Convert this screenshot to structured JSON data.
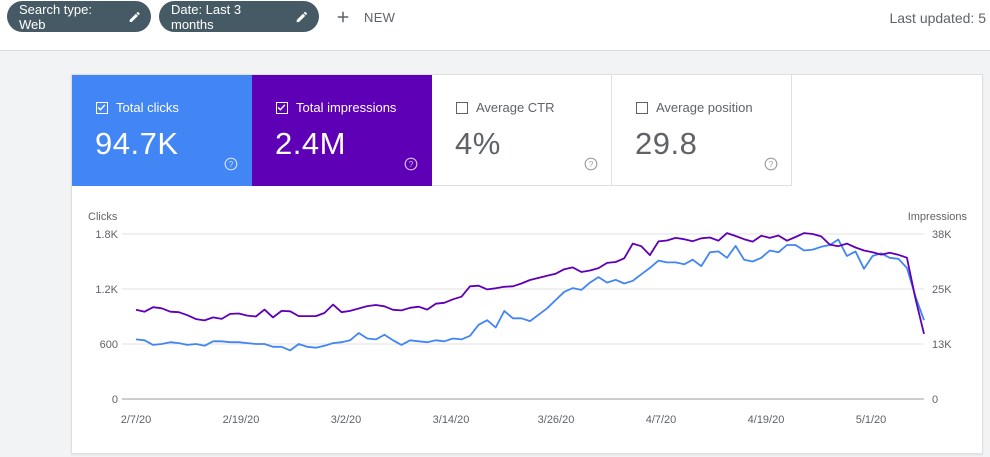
{
  "toolbar": {
    "chip_search_type": "Search type: Web",
    "chip_date": "Date: Last 3 months",
    "new_label": "NEW",
    "last_updated": "Last updated: 5"
  },
  "metrics": {
    "clicks": {
      "label": "Total clicks",
      "value": "94.7K",
      "checked": true,
      "color": "#4285f4"
    },
    "impressions": {
      "label": "Total impressions",
      "value": "2.4M",
      "checked": true,
      "color": "#5e00b5"
    },
    "ctr": {
      "label": "Average CTR",
      "value": "4%",
      "checked": false
    },
    "position": {
      "label": "Average position",
      "value": "29.8",
      "checked": false
    }
  },
  "chart_data": {
    "type": "line",
    "left_axis": {
      "title": "Clicks",
      "ticks": [
        "0",
        "600",
        "1.2K",
        "1.8K"
      ],
      "ylim": [
        0,
        1800
      ]
    },
    "right_axis": {
      "title": "Impressions",
      "ticks": [
        "0",
        "13K",
        "25K",
        "38K"
      ],
      "ylim": [
        0,
        38000
      ]
    },
    "x_ticks": [
      "2/7/20",
      "2/19/20",
      "3/2/20",
      "3/14/20",
      "3/26/20",
      "4/7/20",
      "4/19/20",
      "5/1/20"
    ],
    "series": [
      {
        "name": "Clicks",
        "color": "#4285f4",
        "axis": "left",
        "values": [
          650,
          640,
          590,
          600,
          620,
          610,
          590,
          600,
          580,
          630,
          630,
          620,
          620,
          610,
          600,
          600,
          570,
          570,
          530,
          600,
          570,
          560,
          580,
          610,
          620,
          640,
          720,
          660,
          650,
          700,
          640,
          590,
          640,
          630,
          620,
          640,
          630,
          660,
          650,
          690,
          810,
          860,
          780,
          960,
          880,
          880,
          850,
          920,
          990,
          1080,
          1170,
          1210,
          1190,
          1270,
          1330,
          1270,
          1300,
          1260,
          1290,
          1360,
          1430,
          1510,
          1490,
          1490,
          1470,
          1520,
          1450,
          1600,
          1610,
          1540,
          1670,
          1520,
          1500,
          1540,
          1620,
          1600,
          1680,
          1680,
          1620,
          1630,
          1660,
          1680,
          1740,
          1560,
          1610,
          1420,
          1560,
          1590,
          1540,
          1530,
          1430,
          1120,
          860
        ]
      },
      {
        "name": "Impressions",
        "color": "#5e00b5",
        "axis": "right",
        "values": [
          20550,
          20100,
          21150,
          20900,
          20100,
          20000,
          19300,
          18400,
          18100,
          18800,
          18450,
          19600,
          19700,
          19200,
          19000,
          20600,
          18800,
          20300,
          20200,
          19100,
          19100,
          19100,
          19800,
          21750,
          20000,
          20300,
          20850,
          21400,
          21650,
          21350,
          20550,
          20400,
          21000,
          21250,
          20600,
          21950,
          22150,
          22950,
          23550,
          25950,
          26100,
          25250,
          25500,
          25850,
          25950,
          26600,
          27400,
          27900,
          28400,
          28850,
          29900,
          30300,
          29250,
          29600,
          30150,
          31350,
          31550,
          32400,
          35800,
          35200,
          33150,
          36300,
          36500,
          37100,
          36800,
          36350,
          37000,
          37200,
          36450,
          38200,
          37550,
          36800,
          36250,
          37600,
          37100,
          37650,
          36450,
          37300,
          38200,
          38000,
          37450,
          35550,
          35200,
          35800,
          34900,
          34200,
          33800,
          33250,
          33700,
          33200,
          32550,
          23200,
          15000
        ]
      }
    ]
  }
}
